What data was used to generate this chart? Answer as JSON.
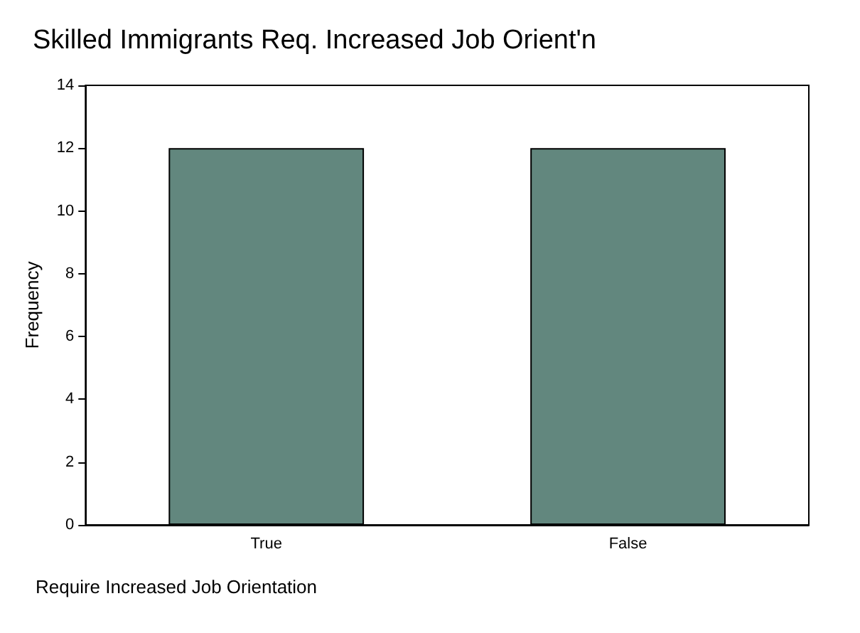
{
  "chart_data": {
    "type": "bar",
    "title": "Skilled Immigrants Req. Increased Job Orient'n",
    "xlabel": "Require Increased Job Orientation",
    "ylabel": "Frequency",
    "categories": [
      "True",
      "False"
    ],
    "values": [
      12,
      12
    ],
    "color": "#62877e",
    "ylim": [
      0,
      14
    ],
    "yticks": [
      0,
      2,
      4,
      6,
      8,
      10,
      12,
      14
    ],
    "grid": false
  }
}
